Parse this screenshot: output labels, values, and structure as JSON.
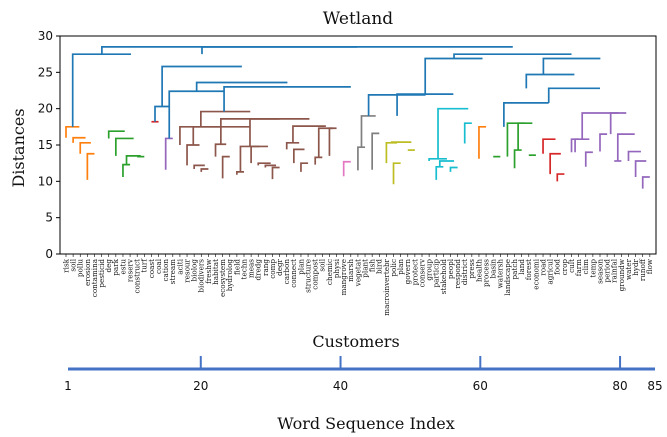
{
  "chart_data": {
    "type": "dendrogram",
    "title": "Wetland",
    "ylabel": "Distances",
    "ylim": [
      0,
      30
    ],
    "yticks": [
      0,
      5,
      10,
      15,
      20,
      25,
      30
    ],
    "leaves": [
      "risk",
      "soil",
      "pollu",
      "erosion",
      "contamina",
      "pesticid",
      "deg",
      "park",
      "estu",
      "reserv",
      "construct",
      "turf",
      "coast",
      "coal",
      "cation",
      "stream",
      "aciti",
      "resour",
      "biolog",
      "biodivers",
      "freshw",
      "habitat",
      "ecosystem",
      "hydrolog",
      "field",
      "techn",
      "meas",
      "dredg",
      "rang",
      "comp",
      "degr",
      "carbon",
      "connect",
      "plan",
      "structure",
      "compost",
      "soil",
      "chemic",
      "physi",
      "mangrove",
      "marsh",
      "vegetat",
      "plant",
      "fish",
      "bird",
      "macroinvertebr",
      "polic",
      "plan",
      "govern",
      "protect",
      "conserv",
      "group",
      "particip",
      "stakehold",
      "peopl",
      "respond",
      "district",
      "press",
      "health",
      "process",
      "basin",
      "watersh",
      "landscape",
      "patch",
      "land",
      "forest",
      "economi",
      "road",
      "agricul",
      "food",
      "crop",
      "cult",
      "farm",
      "clim",
      "temp",
      "season",
      "period",
      "rainfal",
      "groundw",
      "water",
      "hydr",
      "runoff",
      "flow"
    ],
    "clusters": [
      {
        "color": "#ff7f0e",
        "links": [
          [
            [
              3,
              4
            ],
            [
              10.2,
              13.8
            ]
          ],
          [
            [
              2,
              3.5
            ],
            [
              13.8,
              15.3
            ]
          ],
          [
            [
              1,
              2.75
            ],
            [
              15.3,
              16.0
            ]
          ],
          [
            [
              0,
              1.875
            ],
            [
              16.0,
              17.5
            ]
          ]
        ]
      },
      {
        "color": "#2ca02c",
        "links": [
          [
            [
              10,
              11
            ],
            [
              13.4,
              13.4
            ]
          ],
          [
            [
              8,
              9
            ],
            [
              10.6,
              12.3
            ]
          ],
          [
            [
              8.5,
              10.5
            ],
            [
              12.3,
              13.5
            ]
          ],
          [
            [
              7,
              9.5
            ],
            [
              13.5,
              15.9
            ]
          ],
          [
            [
              6,
              8.25
            ],
            [
              15.9,
              16.9
            ]
          ]
        ]
      },
      {
        "color": "#d62728",
        "links": [
          [
            [
              12,
              13
            ],
            [
              18.2,
              18.2
            ]
          ]
        ]
      },
      {
        "color": "#9467bd",
        "links": [
          [
            [
              14,
              15
            ],
            [
              11.6,
              15.9
            ]
          ]
        ]
      },
      {
        "color": "#8c564b",
        "links": [
          [
            [
              19,
              20
            ],
            [
              11.3,
              11.7
            ]
          ],
          [
            [
              18,
              19.5
            ],
            [
              11.7,
              12.2
            ]
          ],
          [
            [
              17,
              18.75
            ],
            [
              12.2,
              15.0
            ]
          ],
          [
            [
              22,
              23
            ],
            [
              10.4,
              13.4
            ]
          ],
          [
            [
              21,
              22.5
            ],
            [
              13.4,
              15.1
            ]
          ],
          [
            [
              24,
              25
            ],
            [
              10.9,
              11.3
            ]
          ],
          [
            [
              29,
              30
            ],
            [
              10.3,
              11.9
            ]
          ],
          [
            [
              28,
              29.5
            ],
            [
              11.9,
              12.2
            ]
          ],
          [
            [
              27,
              28.75
            ],
            [
              12.2,
              12.5
            ]
          ],
          [
            [
              26,
              28.375
            ],
            [
              12.5,
              14.8
            ]
          ],
          [
            [
              24.5,
              27.1875
            ],
            [
              11.3,
              14.8
            ]
          ],
          [
            [
              33,
              34
            ],
            [
              11.3,
              12.5
            ]
          ],
          [
            [
              32,
              33.5
            ],
            [
              12.5,
              14.4
            ]
          ],
          [
            [
              31,
              32.75
            ],
            [
              14.4,
              15.3
            ]
          ],
          [
            [
              35,
              36
            ],
            [
              12.3,
              13.3
            ]
          ],
          [
            [
              37,
              38
            ],
            [
              13.5,
              17.3
            ]
          ],
          [
            [
              35.5,
              37.5
            ],
            [
              13.3,
              17.3
            ]
          ],
          [
            [
              31.875,
              36.5
            ],
            [
              15.3,
              17.6
            ]
          ],
          [
            [
              25.84,
              34.19
            ],
            [
              14.8,
              18.6
            ]
          ],
          [
            [
              21.75,
              30.01
            ],
            [
              15.1,
              18.6
            ]
          ],
          [
            [
              17.875,
              25.88
            ],
            [
              15.0,
              17.5
            ]
          ],
          [
            [
              16,
              21.88
            ],
            [
              15.0,
              17.5
            ]
          ],
          [
            [
              18.94,
              25.88
            ],
            [
              17.5,
              19.6
            ]
          ]
        ]
      },
      {
        "color": "#e377c2",
        "links": [
          [
            [
              39,
              40
            ],
            [
              10.7,
              12.7
            ]
          ]
        ]
      },
      {
        "color": "#7f7f7f",
        "links": [
          [
            [
              41,
              42
            ],
            [
              11.5,
              14.7
            ]
          ],
          [
            [
              43,
              44
            ],
            [
              11.6,
              16.6
            ]
          ],
          [
            [
              41.5,
              43.5
            ],
            [
              14.7,
              19.0
            ]
          ]
        ]
      },
      {
        "color": "#bcbd22",
        "links": [
          [
            [
              46,
              47
            ],
            [
              9.6,
              12.5
            ]
          ],
          [
            [
              45,
              46.5
            ],
            [
              12.5,
              15.3
            ]
          ],
          [
            [
              48,
              49
            ],
            [
              14.3,
              14.3
            ]
          ],
          [
            [
              45.75,
              48.5
            ],
            [
              15.3,
              15.4
            ]
          ]
        ]
      },
      {
        "color": "#17becf",
        "links": [
          [
            [
              52,
              53
            ],
            [
              10.2,
              12.0
            ]
          ],
          [
            [
              54,
              55
            ],
            [
              11.3,
              11.9
            ]
          ],
          [
            [
              52.5,
              54.5
            ],
            [
              12.0,
              12.8
            ]
          ],
          [
            [
              51,
              53.5
            ],
            [
              12.8,
              13.1
            ]
          ],
          [
            [
              56,
              57
            ],
            [
              15.2,
              18.0
            ]
          ],
          [
            [
              52.25,
              56.5
            ],
            [
              13.1,
              20.0
            ]
          ]
        ]
      },
      {
        "color": "#ff7f0e",
        "links": [
          [
            [
              58,
              59
            ],
            [
              13.1,
              17.5
            ]
          ]
        ]
      },
      {
        "color": "#2ca02c",
        "links": [
          [
            [
              60,
              61
            ],
            [
              13.4,
              13.4
            ]
          ],
          [
            [
              63,
              64
            ],
            [
              11.8,
              14.3
            ]
          ],
          [
            [
              65,
              66
            ],
            [
              13.6,
              13.6
            ]
          ],
          [
            [
              63.5,
              65.5
            ],
            [
              14.3,
              18.0
            ]
          ],
          [
            [
              62,
              64.5
            ],
            [
              13.4,
              18.0
            ]
          ]
        ]
      },
      {
        "color": "#d62728",
        "links": [
          [
            [
              69,
              70
            ],
            [
              10.0,
              11.0
            ]
          ],
          [
            [
              68,
              69.5
            ],
            [
              11.0,
              13.8
            ]
          ],
          [
            [
              67,
              68.75
            ],
            [
              13.8,
              15.8
            ]
          ]
        ]
      },
      {
        "color": "#9467bd",
        "links": [
          [
            [
              73,
              74
            ],
            [
              12.0,
              14.0
            ]
          ],
          [
            [
              71,
              72
            ],
            [
              14.0,
              15.8
            ]
          ],
          [
            [
              71.5,
              73.5
            ],
            [
              14.0,
              15.8
            ]
          ],
          [
            [
              77,
              78
            ],
            [
              12.8,
              12.8
            ]
          ],
          [
            [
              81,
              82
            ],
            [
              9.0,
              10.6
            ]
          ],
          [
            [
              80,
              81.5
            ],
            [
              10.6,
              12.8
            ]
          ],
          [
            [
              79,
              80.75
            ],
            [
              12.8,
              14.1
            ]
          ],
          [
            [
              77.5,
              79.875
            ],
            [
              12.8,
              16.5
            ]
          ],
          [
            [
              75,
              76
            ],
            [
              14.1,
              16.5
            ]
          ],
          [
            [
              76.5,
              78.69
            ],
            [
              16.5,
              19.4
            ]
          ],
          [
            [
              72.5,
              77.59
            ],
            [
              15.8,
              19.4
            ]
          ]
        ]
      },
      {
        "color": "#1f77b4",
        "links": [
          [
            [
              0.94,
              9.13
            ],
            [
              17.5,
              27.5
            ]
          ],
          [
            [
              12.5,
              14.5
            ],
            [
              18.2,
              20.3
            ]
          ],
          [
            [
              14.5,
              22.2
            ],
            [
              15.9,
              22.4
            ]
          ],
          [
            [
              22.2,
              40
            ],
            [
              19.6,
              23.0
            ]
          ],
          [
            [
              18.35,
              31.1
            ],
            [
              22.4,
              23.6
            ]
          ],
          [
            [
              13.5,
              24.7
            ],
            [
              20.3,
              25.8
            ]
          ],
          [
            [
              42.5,
              50.5
            ],
            [
              19.0,
              21.9
            ]
          ],
          [
            [
              46.5,
              54.4
            ],
            [
              19.0,
              22.0
            ]
          ],
          [
            [
              50.45,
              58.5
            ],
            [
              22.0,
              26.9
            ]
          ],
          [
            [
              61.5,
              67.8
            ],
            [
              17.5,
              20.8
            ]
          ],
          [
            [
              67.8,
              75
            ],
            [
              20.8,
              22.8
            ]
          ],
          [
            [
              64.65,
              71.4
            ],
            [
              22.8,
              24.7
            ]
          ],
          [
            [
              67.05,
              75.05
            ],
            [
              24.7,
              26.9
            ]
          ],
          [
            [
              54.5,
              71.0
            ],
            [
              26.9,
              27.5
            ]
          ],
          [
            [
              19.1,
              62.75
            ],
            [
              27.5,
              28.5
            ]
          ],
          [
            [
              5.04,
              40.9
            ],
            [
              27.5,
              28.5
            ]
          ]
        ]
      }
    ],
    "scale_axis": {
      "title": "Customers",
      "xlabel": "Word Sequence Index",
      "range": [
        1,
        85
      ],
      "ticks": [
        1,
        20,
        40,
        60,
        80,
        85
      ],
      "color": "#4472c4"
    }
  }
}
